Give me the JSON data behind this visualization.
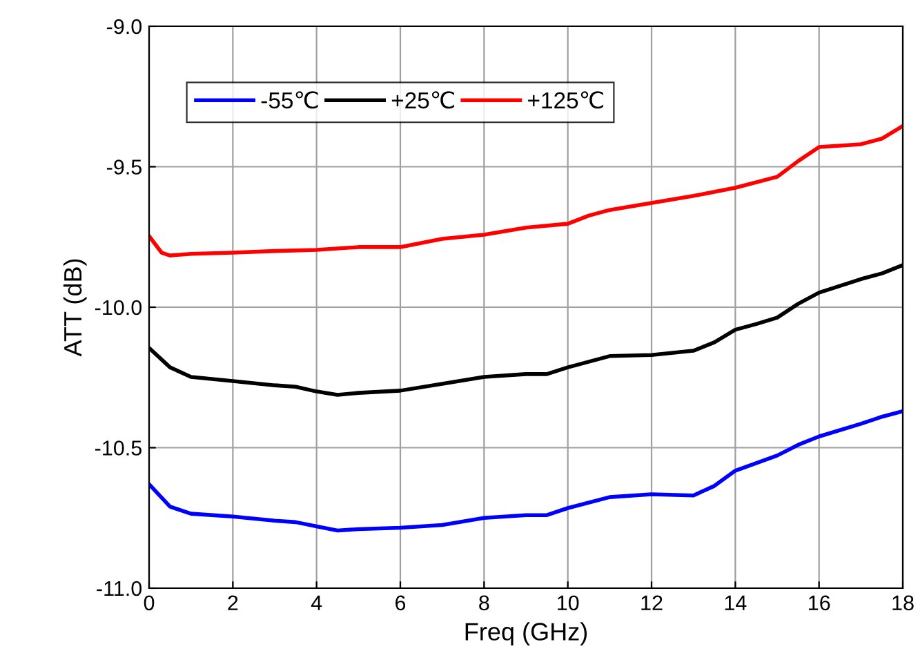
{
  "chart_data": {
    "type": "line",
    "xlabel": "Freq (GHz)",
    "ylabel": "ATT (dB)",
    "xlim": [
      0,
      18
    ],
    "ylim": [
      -11.0,
      -9.0
    ],
    "xticks": [
      0,
      2,
      4,
      6,
      8,
      10,
      12,
      14,
      16,
      18
    ],
    "yticks": [
      {
        "value": -11.0,
        "label": "-11.0"
      },
      {
        "value": -10.5,
        "label": "-10.5"
      },
      {
        "value": -10.0,
        "label": "-10.0"
      },
      {
        "value": -9.5,
        "label": "-9.5"
      },
      {
        "value": -9.0,
        "label": "-9.0"
      }
    ],
    "grid": true,
    "legend": "top left",
    "line_style": "solid",
    "marker": "none",
    "series": [
      {
        "name": "-55℃",
        "color": "#0000ff",
        "x": [
          0,
          0.5,
          1,
          2,
          3,
          3.5,
          4,
          4.5,
          5,
          6,
          7,
          8,
          9,
          9.5,
          10,
          11,
          12,
          13,
          13.5,
          14,
          15,
          15.5,
          16,
          17,
          17.5,
          18
        ],
        "values": [
          -10.63,
          -10.71,
          -10.735,
          -10.745,
          -10.76,
          -10.765,
          -10.78,
          -10.795,
          -10.79,
          -10.785,
          -10.775,
          -10.75,
          -10.74,
          -10.74,
          -10.715,
          -10.676,
          -10.666,
          -10.67,
          -10.636,
          -10.582,
          -10.528,
          -10.49,
          -10.46,
          -10.415,
          -10.39,
          -10.37
        ]
      },
      {
        "name": "+25℃",
        "color": "#000000",
        "x": [
          0,
          0.5,
          1,
          2,
          3,
          3.5,
          4,
          4.5,
          5,
          6,
          7,
          8,
          9,
          9.5,
          10,
          11,
          12,
          13,
          13.5,
          14,
          14.5,
          15,
          15.5,
          16,
          17,
          17.5,
          18
        ],
        "values": [
          -10.145,
          -10.214,
          -10.248,
          -10.263,
          -10.278,
          -10.283,
          -10.3,
          -10.312,
          -10.305,
          -10.297,
          -10.273,
          -10.248,
          -10.238,
          -10.238,
          -10.214,
          -10.174,
          -10.17,
          -10.155,
          -10.125,
          -10.08,
          -10.06,
          -10.037,
          -9.988,
          -9.948,
          -9.9,
          -9.88,
          -9.85
        ]
      },
      {
        "name": "+125℃",
        "color": "#ff0000",
        "x": [
          0,
          0.3,
          0.5,
          1,
          2,
          3,
          4,
          5,
          6,
          7,
          8,
          9,
          10,
          10.5,
          11,
          12,
          13,
          14,
          15,
          15.5,
          16,
          17,
          17.5,
          18
        ],
        "values": [
          -9.747,
          -9.806,
          -9.816,
          -9.81,
          -9.806,
          -9.8,
          -9.796,
          -9.786,
          -9.786,
          -9.757,
          -9.742,
          -9.717,
          -9.703,
          -9.674,
          -9.654,
          -9.629,
          -9.604,
          -9.575,
          -9.536,
          -9.48,
          -9.43,
          -9.42,
          -9.4,
          -9.355
        ]
      }
    ]
  }
}
